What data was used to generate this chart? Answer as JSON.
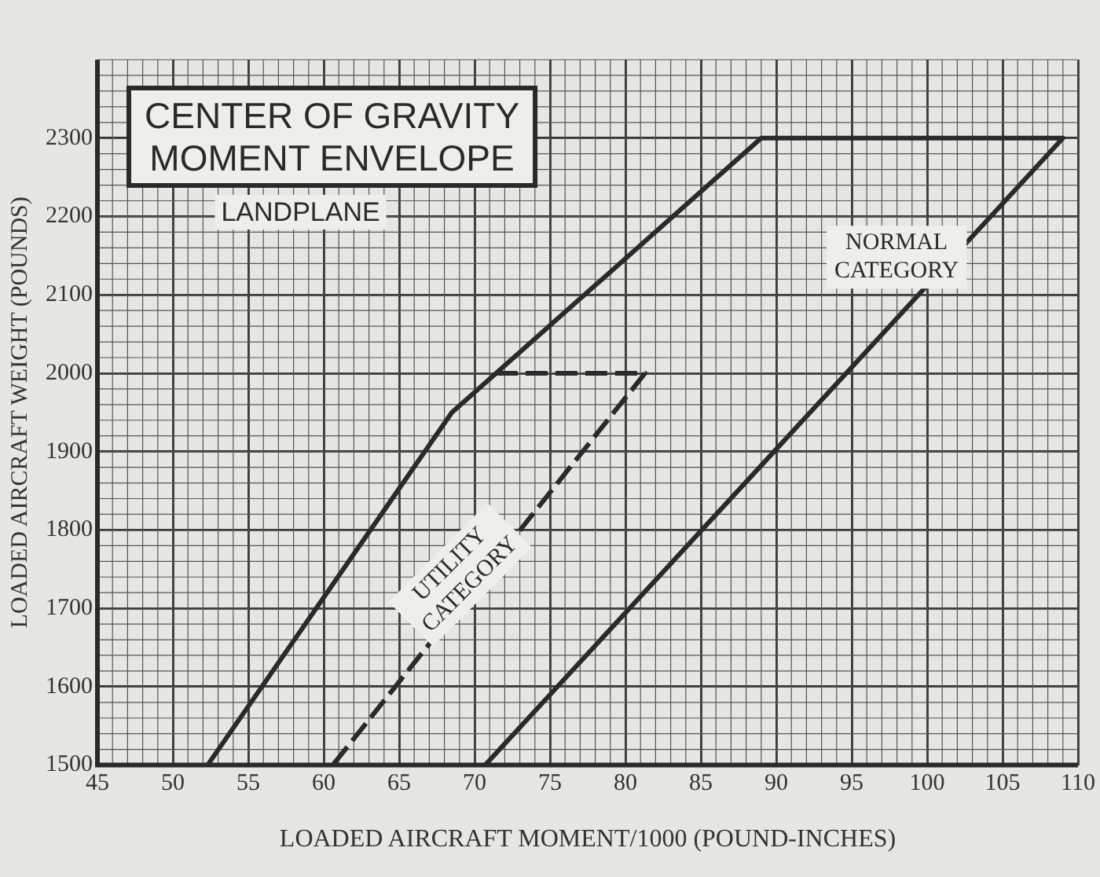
{
  "chart_data": {
    "type": "line",
    "title": "CENTER OF GRAVITY MOMENT ENVELOPE",
    "subtitle": "LANDPLANE",
    "xlabel": "LOADED AIRCRAFT MOMENT/1000 (POUND-INCHES)",
    "ylabel": "LOADED AIRCRAFT WEIGHT (POUNDS)",
    "series": [
      {
        "color": "#2a2a2a",
        "x": [
          52.3,
          68.5,
          89,
          109,
          70.7
        ],
        "values": [
          1500,
          1950,
          2300,
          2300,
          1500
        ],
        "line_style": "solid"
      },
      {
        "color": "#2a2a2a",
        "x": [
          71.4,
          81.3,
          60.6
        ],
        "values": [
          2000,
          2000,
          1500
        ],
        "line_style": "dashed"
      }
    ],
    "annotations": [
      "NORMAL CATEGORY",
      "UTILITY CATEGORY"
    ],
    "xlim": [
      45,
      110
    ],
    "xticks": [
      45,
      50,
      55,
      60,
      65,
      70,
      75,
      80,
      85,
      90,
      95,
      100,
      105,
      110
    ],
    "ylim": [
      1500,
      2400
    ],
    "yticks": [
      1500,
      1600,
      1700,
      1800,
      1900,
      2000,
      2100,
      2200,
      2300
    ],
    "grid": true,
    "legend": false,
    "marker": "none"
  }
}
